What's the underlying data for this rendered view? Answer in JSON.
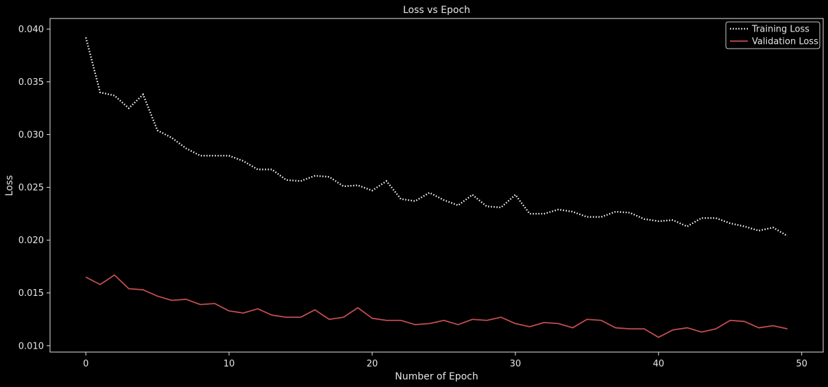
{
  "chart_data": {
    "type": "line",
    "title": "Loss vs Epoch",
    "xlabel": "Number of Epoch",
    "ylabel": "Loss",
    "xlim": [
      -2.5,
      51.5
    ],
    "ylim": [
      0.0094,
      0.041
    ],
    "xticks": [
      0,
      10,
      20,
      30,
      40,
      50
    ],
    "yticks": [
      0.01,
      0.015,
      0.02,
      0.025,
      0.03,
      0.035,
      0.04
    ],
    "xtick_labels": [
      "0",
      "10",
      "20",
      "30",
      "40",
      "50"
    ],
    "ytick_labels": [
      "0.010",
      "0.015",
      "0.020",
      "0.025",
      "0.030",
      "0.035",
      "0.040"
    ],
    "grid": false,
    "legend_position": "top-right",
    "background": "#000000",
    "axes_color": "#e6e6e6",
    "series": [
      {
        "name": "Training Loss",
        "color": "#ffffff",
        "style": "dotted",
        "x": [
          0,
          1,
          2,
          3,
          4,
          5,
          6,
          7,
          8,
          9,
          10,
          11,
          12,
          13,
          14,
          15,
          16,
          17,
          18,
          19,
          20,
          21,
          22,
          23,
          24,
          25,
          26,
          27,
          28,
          29,
          30,
          31,
          32,
          33,
          34,
          35,
          36,
          37,
          38,
          39,
          40,
          41,
          42,
          43,
          44,
          45,
          46,
          47,
          48,
          49
        ],
        "values": [
          0.0392,
          0.034,
          0.0337,
          0.0325,
          0.0338,
          0.0304,
          0.0297,
          0.0287,
          0.028,
          0.028,
          0.028,
          0.0275,
          0.0267,
          0.0267,
          0.0257,
          0.0256,
          0.0261,
          0.026,
          0.0251,
          0.0252,
          0.0247,
          0.0256,
          0.0239,
          0.0237,
          0.0245,
          0.0238,
          0.0233,
          0.0243,
          0.0232,
          0.0231,
          0.0243,
          0.0225,
          0.0225,
          0.0229,
          0.0227,
          0.0222,
          0.0222,
          0.0227,
          0.0226,
          0.022,
          0.0218,
          0.0219,
          0.0213,
          0.0221,
          0.0221,
          0.0216,
          0.0213,
          0.0209,
          0.0212,
          0.0204
        ]
      },
      {
        "name": "Validation Loss",
        "color": "#c44e52",
        "style": "solid",
        "x": [
          0,
          1,
          2,
          3,
          4,
          5,
          6,
          7,
          8,
          9,
          10,
          11,
          12,
          13,
          14,
          15,
          16,
          17,
          18,
          19,
          20,
          21,
          22,
          23,
          24,
          25,
          26,
          27,
          28,
          29,
          30,
          31,
          32,
          33,
          34,
          35,
          36,
          37,
          38,
          39,
          40,
          41,
          42,
          43,
          44,
          45,
          46,
          47,
          48,
          49
        ],
        "values": [
          0.0165,
          0.0158,
          0.0167,
          0.0154,
          0.0153,
          0.0147,
          0.0143,
          0.0144,
          0.0139,
          0.014,
          0.0133,
          0.0131,
          0.0135,
          0.0129,
          0.0127,
          0.0127,
          0.0134,
          0.0125,
          0.0127,
          0.0136,
          0.0126,
          0.0124,
          0.0124,
          0.012,
          0.0121,
          0.0124,
          0.012,
          0.0125,
          0.0124,
          0.0127,
          0.0121,
          0.0118,
          0.0122,
          0.0121,
          0.0117,
          0.0125,
          0.0124,
          0.0117,
          0.0116,
          0.0116,
          0.0108,
          0.0115,
          0.0117,
          0.0113,
          0.0116,
          0.0124,
          0.0123,
          0.0117,
          0.0119,
          0.0116
        ]
      }
    ]
  }
}
